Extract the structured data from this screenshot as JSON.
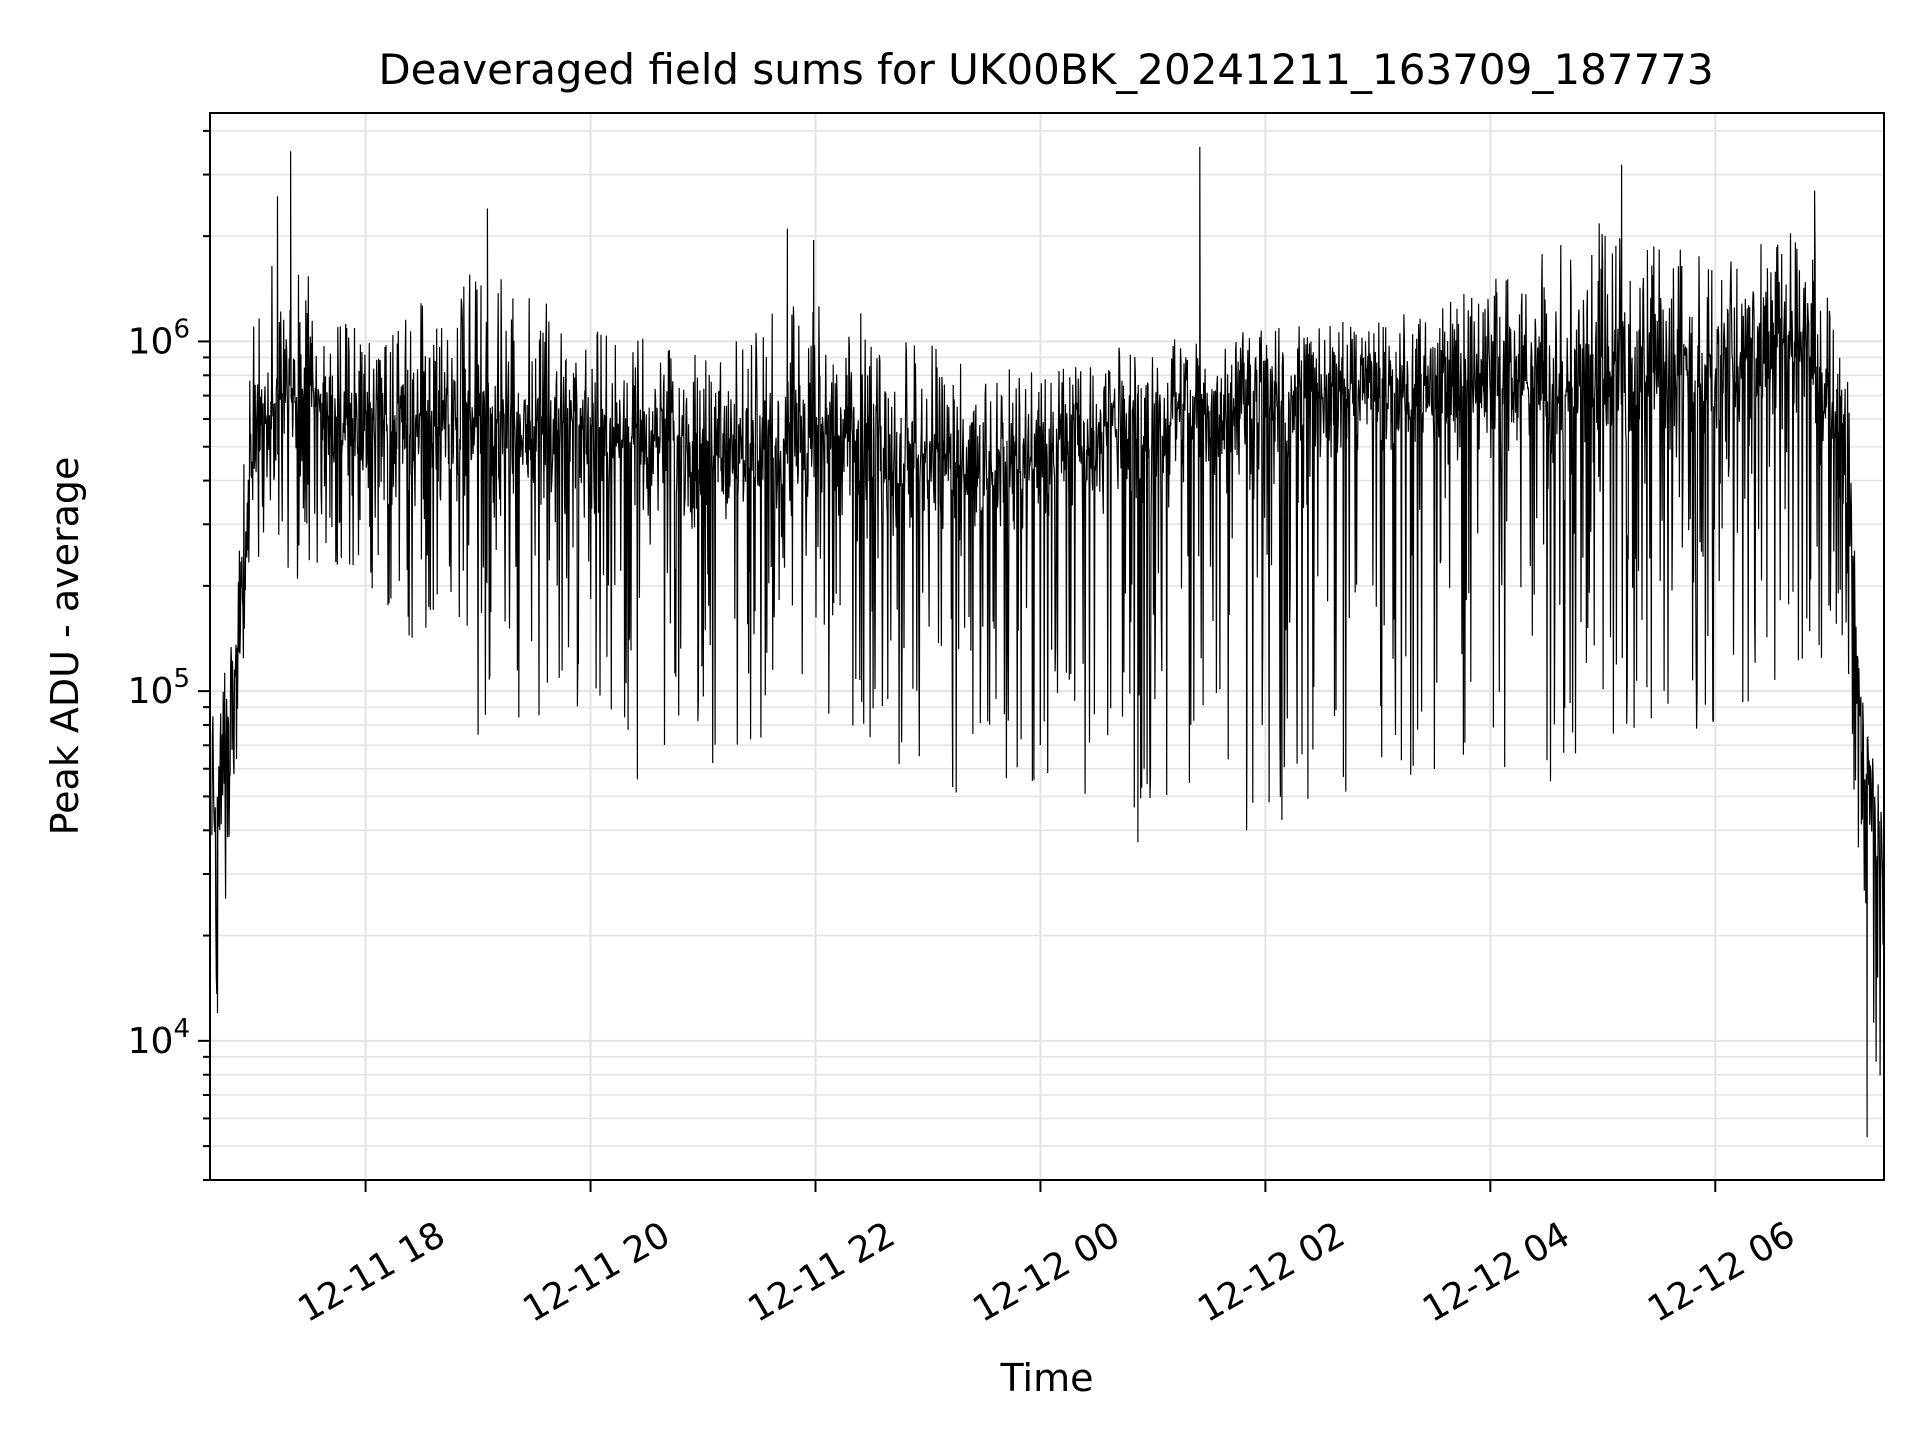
{
  "chart_data": {
    "type": "line",
    "title": "Deaveraged field sums for UK00BK_20241211_163709_187773",
    "xlabel": "Time",
    "ylabel": "Peak ADU - average",
    "yscale": "log",
    "ylim": [
      4000,
      4500000
    ],
    "xlim": [
      "2024-12-11 16:37",
      "2024-12-12 07:30"
    ],
    "x_ticks": [
      {
        "time": "2024-12-11 18:00",
        "label": "12-11 18"
      },
      {
        "time": "2024-12-11 20:00",
        "label": "12-11 20"
      },
      {
        "time": "2024-12-11 22:00",
        "label": "12-11 22"
      },
      {
        "time": "2024-12-12 00:00",
        "label": "12-12 00"
      },
      {
        "time": "2024-12-12 02:00",
        "label": "12-12 02"
      },
      {
        "time": "2024-12-12 04:00",
        "label": "12-12 04"
      },
      {
        "time": "2024-12-12 06:00",
        "label": "12-12 06"
      }
    ],
    "y_ticks": [
      {
        "value": 10000,
        "base": "10",
        "exp": "4"
      },
      {
        "value": 100000,
        "base": "10",
        "exp": "5"
      },
      {
        "value": 1000000,
        "base": "10",
        "exp": "6"
      }
    ],
    "grid": true,
    "line_color": "#000000",
    "envelope": [
      {
        "time": "2024-12-11 16:38",
        "median": 60000,
        "high": 150000,
        "low": 25000
      },
      {
        "time": "2024-12-11 16:40",
        "median": 40000,
        "high": 120000,
        "low": 12000
      },
      {
        "time": "2024-12-11 16:50",
        "median": 100000,
        "high": 170000,
        "low": 45000
      },
      {
        "time": "2024-12-11 17:00",
        "median": 500000,
        "high": 1900000,
        "low": 250000
      },
      {
        "time": "2024-12-11 17:15",
        "median": 650000,
        "high": 2600000,
        "low": 200000
      },
      {
        "time": "2024-12-11 18:00",
        "median": 580000,
        "high": 1300000,
        "low": 200000
      },
      {
        "time": "2024-12-11 19:00",
        "median": 560000,
        "high": 2400000,
        "low": 75000
      },
      {
        "time": "2024-12-11 20:00",
        "median": 520000,
        "high": 1400000,
        "low": 90000
      },
      {
        "time": "2024-12-11 21:00",
        "median": 480000,
        "high": 1300000,
        "low": 56000
      },
      {
        "time": "2024-12-11 22:00",
        "median": 500000,
        "high": 2000000,
        "low": 90000
      },
      {
        "time": "2024-12-11 23:00",
        "median": 420000,
        "high": 1300000,
        "low": 50000
      },
      {
        "time": "2024-12-12 00:00",
        "median": 450000,
        "high": 1000000,
        "low": 55000
      },
      {
        "time": "2024-12-12 01:00",
        "median": 550000,
        "high": 1300000,
        "low": 37000
      },
      {
        "time": "2024-12-12 02:00",
        "median": 650000,
        "high": 1300000,
        "low": 40000
      },
      {
        "time": "2024-12-12 03:00",
        "median": 700000,
        "high": 1400000,
        "low": 55000
      },
      {
        "time": "2024-12-12 04:00",
        "median": 720000,
        "high": 1900000,
        "low": 46000
      },
      {
        "time": "2024-12-12 05:00",
        "median": 750000,
        "high": 3200000,
        "low": 60000
      },
      {
        "time": "2024-12-12 06:00",
        "median": 800000,
        "high": 2500000,
        "low": 80000
      },
      {
        "time": "2024-12-12 06:50",
        "median": 1000000,
        "high": 2700000,
        "low": 100000
      },
      {
        "time": "2024-12-12 07:10",
        "median": 500000,
        "high": 1200000,
        "low": 150000
      },
      {
        "time": "2024-12-12 07:18",
        "median": 60000,
        "high": 180000,
        "low": 15000
      },
      {
        "time": "2024-12-12 07:30",
        "median": 35000,
        "high": 70000,
        "low": 5300
      }
    ],
    "spikes": [
      {
        "time": "2024-12-11 17:13",
        "value": 2600000
      },
      {
        "time": "2024-12-11 17:20",
        "value": 3500000
      },
      {
        "time": "2024-12-11 19:05",
        "value": 2400000
      },
      {
        "time": "2024-12-11 21:45",
        "value": 2100000
      },
      {
        "time": "2024-12-11 21:59",
        "value": 1950000
      },
      {
        "time": "2024-12-12 01:25",
        "value": 3600000
      },
      {
        "time": "2024-12-12 05:10",
        "value": 3200000
      },
      {
        "time": "2024-12-12 06:53",
        "value": 2700000
      },
      {
        "time": "2024-12-11 19:00",
        "value": 75000
      },
      {
        "time": "2024-12-11 20:25",
        "value": 56000
      },
      {
        "time": "2024-12-12 00:52",
        "value": 37000
      },
      {
        "time": "2024-12-12 01:50",
        "value": 40000
      },
      {
        "time": "2024-12-12 07:21",
        "value": 5300
      },
      {
        "time": "2024-12-11 16:41",
        "value": 12000
      }
    ]
  }
}
